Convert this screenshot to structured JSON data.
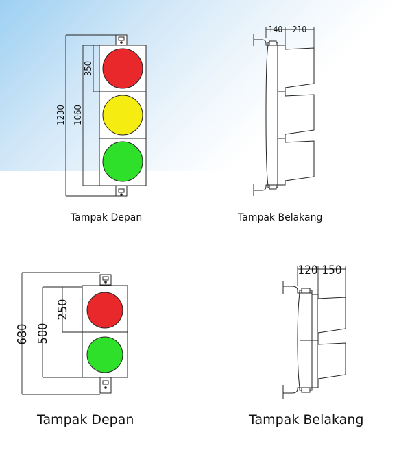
{
  "top_front": {
    "dims": {
      "total": "1230",
      "housing": "1060",
      "module": "350"
    },
    "caption": "Tampak Depan"
  },
  "top_back": {
    "dims": {
      "a": "140",
      "b": "210"
    },
    "caption": "Tampak Belakang"
  },
  "bottom_front": {
    "dims": {
      "total": "680",
      "housing": "500",
      "module": "250"
    },
    "caption": "Tampak Depan"
  },
  "bottom_back": {
    "dims": {
      "a": "120",
      "b": "150"
    },
    "caption": "Tampak Belakang"
  },
  "colors": {
    "red": "#e8282a",
    "yellow": "#f5ec12",
    "green": "#2fe02b"
  }
}
